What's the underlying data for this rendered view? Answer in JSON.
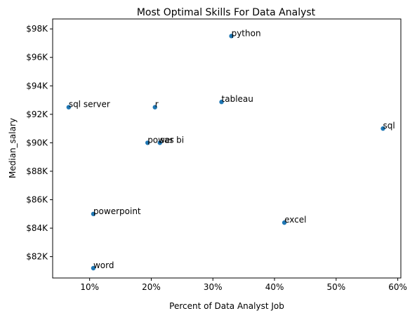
{
  "chart_data": {
    "type": "scatter",
    "title": "Most Optimal Skills For Data Analyst",
    "xlabel": "Percent of Data Analyst Job",
    "ylabel": "Median_salary",
    "xlim": [
      4,
      60.5
    ],
    "ylim": [
      80500,
      98700
    ],
    "x_ticks": [
      10,
      20,
      30,
      40,
      50,
      60
    ],
    "x_tick_labels": [
      "10%",
      "20%",
      "30%",
      "40%",
      "50%",
      "60%"
    ],
    "y_ticks": [
      82000,
      84000,
      86000,
      88000,
      90000,
      92000,
      94000,
      96000,
      98000
    ],
    "y_tick_labels": [
      "$82K",
      "$84K",
      "$86K",
      "$88K",
      "$90K",
      "$92K",
      "$94K",
      "$96K",
      "$98K"
    ],
    "grid": false,
    "point_color": "#1f77b4",
    "points": [
      {
        "label": "sql server",
        "x": 6.6,
        "y": 92500
      },
      {
        "label": "r",
        "x": 20.6,
        "y": 92500
      },
      {
        "label": "python",
        "x": 33.0,
        "y": 97500
      },
      {
        "label": "tableau",
        "x": 31.4,
        "y": 92870
      },
      {
        "label": "sql",
        "x": 57.6,
        "y": 91000
      },
      {
        "label": "power bi",
        "x": 19.4,
        "y": 90000
      },
      {
        "label": "sas",
        "x": 21.4,
        "y": 90000
      },
      {
        "label": "powerpoint",
        "x": 10.6,
        "y": 85000
      },
      {
        "label": "excel",
        "x": 41.6,
        "y": 84390
      },
      {
        "label": "word",
        "x": 10.6,
        "y": 81190
      }
    ]
  }
}
